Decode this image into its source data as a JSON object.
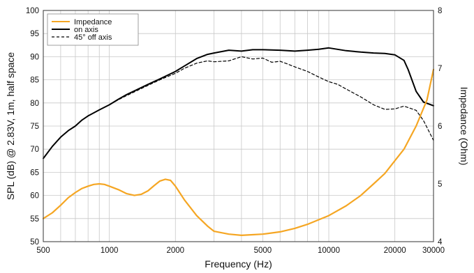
{
  "chart_data": {
    "type": "line",
    "xlabel": "Frequency (Hz)",
    "ylabel": "SPL (dB) @ 2.83V, 1m, half space",
    "y2label": "Impedance (Ohm)",
    "x_scale": "log",
    "xlim": [
      500,
      30000
    ],
    "ylim": [
      50,
      100
    ],
    "y2lim": [
      4,
      8
    ],
    "grid": true,
    "legend_position": "top-left",
    "x_tick_labels": [
      "500",
      "1000",
      "2000",
      "5000",
      "10000",
      "20000",
      "30000"
    ],
    "y_tick_labels": [
      "50",
      "55",
      "60",
      "65",
      "70",
      "75",
      "80",
      "85",
      "90",
      "95",
      "100"
    ],
    "y2_tick_labels": [
      "4",
      "5",
      "6",
      "7",
      "8"
    ],
    "series": [
      {
        "name": "Impedance",
        "axis": "right",
        "color": "#f5a623",
        "style": "solid",
        "x": [
          500,
          550,
          600,
          650,
          700,
          750,
          800,
          850,
          900,
          950,
          1000,
          1100,
          1200,
          1300,
          1400,
          1500,
          1600,
          1700,
          1800,
          1900,
          2000,
          2200,
          2500,
          2800,
          3000,
          3500,
          4000,
          4500,
          5000,
          6000,
          7000,
          8000,
          9000,
          10000,
          12000,
          14000,
          16000,
          18000,
          20000,
          22000,
          25000,
          28000,
          30000
        ],
        "y": [
          4.4,
          4.5,
          4.63,
          4.76,
          4.85,
          4.92,
          4.96,
          4.99,
          5.0,
          4.99,
          4.96,
          4.9,
          4.83,
          4.8,
          4.82,
          4.88,
          4.97,
          5.05,
          5.08,
          5.06,
          4.96,
          4.72,
          4.45,
          4.27,
          4.18,
          4.13,
          4.11,
          4.12,
          4.13,
          4.17,
          4.23,
          4.3,
          4.38,
          4.45,
          4.62,
          4.8,
          5.0,
          5.18,
          5.4,
          5.6,
          6.0,
          6.45,
          6.98
        ]
      },
      {
        "name": "on axis",
        "axis": "left",
        "color": "#000000",
        "style": "solid",
        "x": [
          500,
          550,
          600,
          650,
          700,
          750,
          800,
          900,
          1000,
          1100,
          1200,
          1300,
          1500,
          1700,
          2000,
          2200,
          2500,
          2800,
          3000,
          3500,
          4000,
          4500,
          5000,
          6000,
          7000,
          8000,
          9000,
          10000,
          12000,
          14000,
          16000,
          18000,
          20000,
          22000,
          23000,
          25000,
          27000,
          30000
        ],
        "y": [
          68,
          70.6,
          72.6,
          74,
          75,
          76.3,
          77.2,
          78.5,
          79.6,
          80.8,
          81.8,
          82.6,
          84,
          85.2,
          86.8,
          88,
          89.6,
          90.5,
          90.8,
          91.4,
          91.2,
          91.5,
          91.5,
          91.4,
          91.2,
          91.4,
          91.6,
          91.9,
          91.3,
          91,
          90.8,
          90.7,
          90.4,
          89.2,
          87.2,
          82.5,
          80.2,
          79.4
        ]
      },
      {
        "name": "45° off axis",
        "axis": "left",
        "color": "#000000",
        "style": "dashed",
        "x": [
          500,
          550,
          600,
          650,
          700,
          750,
          800,
          900,
          1000,
          1100,
          1200,
          1300,
          1500,
          1700,
          2000,
          2200,
          2500,
          2800,
          3000,
          3500,
          4000,
          4500,
          5000,
          5500,
          6000,
          6500,
          7000,
          8000,
          9000,
          10000,
          11000,
          12000,
          14000,
          16000,
          18000,
          20000,
          22000,
          25000,
          27000,
          30000
        ],
        "y": [
          68,
          70.6,
          72.6,
          74,
          75,
          76.3,
          77.2,
          78.5,
          79.6,
          80.7,
          81.6,
          82.4,
          83.8,
          85,
          86.4,
          87.5,
          88.6,
          89.1,
          88.9,
          89.1,
          90,
          89.5,
          89.7,
          88.8,
          89,
          88.4,
          87.8,
          86.8,
          85.6,
          84.6,
          84,
          83,
          81.3,
          79.6,
          78.6,
          78.7,
          79.3,
          78.4,
          76.2,
          71.9
        ]
      }
    ]
  }
}
